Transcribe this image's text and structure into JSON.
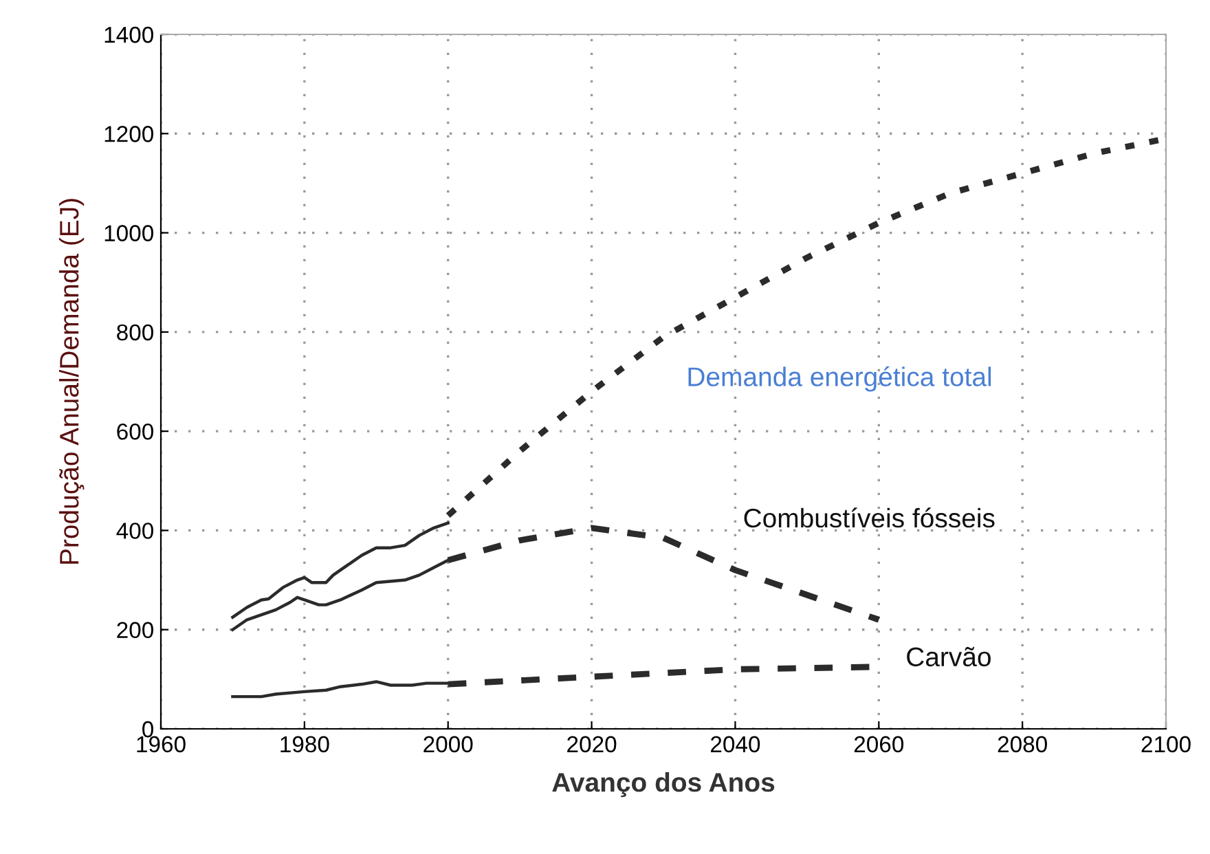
{
  "chart_data": {
    "type": "line",
    "xlabel": "Avanço dos Anos",
    "ylabel": "Produção Anual/Demanda (EJ)",
    "xlim": [
      1960,
      2100
    ],
    "xticks": [
      1960,
      1980,
      2000,
      2020,
      2040,
      2060,
      2080,
      2100
    ],
    "ylim": [
      0,
      1400
    ],
    "yticks": [
      0,
      200,
      400,
      600,
      800,
      1000,
      1200,
      1400
    ],
    "grid": true,
    "marker": "none",
    "series": [
      {
        "color": "#2b2b2b",
        "line_style": "solid",
        "x": [
          1970,
          1972,
          1974,
          1975,
          1977,
          1979,
          1980,
          1981,
          1983,
          1984,
          1986,
          1988,
          1990,
          1992,
          1994,
          1996,
          1998,
          2000
        ],
        "values": [
          225,
          245,
          260,
          262,
          285,
          300,
          305,
          295,
          295,
          310,
          330,
          350,
          365,
          365,
          370,
          390,
          405,
          415
        ]
      },
      {
        "color": "#2b2b2b",
        "line_style": "solid",
        "x": [
          1970,
          1972,
          1974,
          1976,
          1978,
          1979,
          1980,
          1982,
          1983,
          1985,
          1988,
          1990,
          1994,
          1996,
          1998,
          2000
        ],
        "values": [
          200,
          220,
          230,
          240,
          255,
          265,
          260,
          250,
          250,
          260,
          280,
          295,
          300,
          310,
          325,
          340
        ]
      },
      {
        "color": "#2b2b2b",
        "line_style": "solid",
        "x": [
          1970,
          1974,
          1976,
          1980,
          1983,
          1985,
          1988,
          1990,
          1992,
          1995,
          1997,
          2000
        ],
        "values": [
          65,
          65,
          70,
          75,
          78,
          85,
          90,
          95,
          88,
          88,
          92,
          92
        ]
      },
      {
        "color": "#2b2b2b",
        "line_style": "dotted",
        "x": [
          2000,
          2010,
          2020,
          2030,
          2040,
          2050,
          2060,
          2070,
          2080,
          2090,
          2100
        ],
        "name": "Demanda energética total",
        "values": [
          430,
          560,
          680,
          790,
          870,
          950,
          1020,
          1080,
          1120,
          1160,
          1190
        ]
      },
      {
        "color": "#2b2b2b",
        "line_style": "dashed",
        "x": [
          2000,
          2010,
          2020,
          2030,
          2040,
          2050,
          2060
        ],
        "name": "Combustíveis fósseis",
        "values": [
          340,
          380,
          405,
          385,
          320,
          270,
          220
        ]
      },
      {
        "color": "#2b2b2b",
        "line_style": "dashed",
        "x": [
          2000,
          2020,
          2040,
          2060
        ],
        "name": "Carvão",
        "values": [
          90,
          105,
          120,
          125
        ]
      }
    ]
  }
}
